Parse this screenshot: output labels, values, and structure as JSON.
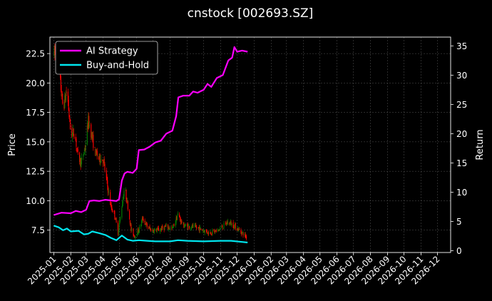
{
  "chart_data": {
    "type": "line",
    "title": "cnstock [002693.SZ]",
    "xlabel": "",
    "ylabel": "Price",
    "y2label": "Return",
    "xlim": [
      "2024-12-25",
      "2026-12-25"
    ],
    "ylim": [
      5.6,
      23.9
    ],
    "y2lim": [
      -0.3,
      36.5
    ],
    "x_ticks": [
      "2025-01",
      "2025-02",
      "2025-03",
      "2025-04",
      "2025-05",
      "2025-06",
      "2025-07",
      "2025-08",
      "2025-09",
      "2025-10",
      "2025-11",
      "2025-12",
      "2026-01",
      "2026-02",
      "2026-03",
      "2026-04",
      "2026-05",
      "2026-06",
      "2026-07",
      "2026-08",
      "2026-09",
      "2026-10",
      "2026-11",
      "2026-12"
    ],
    "y_ticks": [
      "7.5",
      "10.0",
      "12.5",
      "15.0",
      "17.5",
      "20.0",
      "22.5"
    ],
    "y_tick_values": [
      7.5,
      10.0,
      12.5,
      15.0,
      17.5,
      20.0,
      22.5
    ],
    "y2_ticks": [
      "0",
      "5",
      "10",
      "15",
      "20",
      "25",
      "30",
      "35"
    ],
    "y2_tick_values": [
      0,
      5,
      10,
      15,
      20,
      25,
      30,
      35
    ],
    "grid": true,
    "legend_position": "top-left",
    "background": "#000000",
    "candle_up_color": "#008000",
    "candle_down_color": "#ff0000",
    "price_anchors": [
      [
        "2025-01-02",
        22.5
      ],
      [
        "2025-01-10",
        21.3
      ],
      [
        "2025-01-18",
        17.8
      ],
      [
        "2025-01-25",
        19.5
      ],
      [
        "2025-02-01",
        15.6
      ],
      [
        "2025-02-08",
        15.8
      ],
      [
        "2025-02-14",
        13.8
      ],
      [
        "2025-02-20",
        13.2
      ],
      [
        "2025-02-27",
        14.5
      ],
      [
        "2025-03-05",
        16.8
      ],
      [
        "2025-03-10",
        15.8
      ],
      [
        "2025-03-17",
        14.2
      ],
      [
        "2025-03-24",
        13.6
      ],
      [
        "2025-04-01",
        13.5
      ],
      [
        "2025-04-08",
        11.5
      ],
      [
        "2025-04-15",
        9.5
      ],
      [
        "2025-04-22",
        8.8
      ],
      [
        "2025-04-28",
        7.3
      ],
      [
        "2025-05-05",
        9.5
      ],
      [
        "2025-05-10",
        11.2
      ],
      [
        "2025-05-16",
        9.5
      ],
      [
        "2025-05-22",
        7.5
      ],
      [
        "2025-05-28",
        7.0
      ],
      [
        "2025-06-05",
        7.5
      ],
      [
        "2025-06-12",
        8.5
      ],
      [
        "2025-06-20",
        7.8
      ],
      [
        "2025-06-28",
        7.5
      ],
      [
        "2025-07-10",
        7.5
      ],
      [
        "2025-07-25",
        7.8
      ],
      [
        "2025-08-05",
        7.6
      ],
      [
        "2025-08-15",
        8.8
      ],
      [
        "2025-08-25",
        7.9
      ],
      [
        "2025-09-10",
        7.8
      ],
      [
        "2025-09-25",
        7.6
      ],
      [
        "2025-10-10",
        7.3
      ],
      [
        "2025-10-25",
        7.4
      ],
      [
        "2025-11-05",
        7.8
      ],
      [
        "2025-11-15",
        8.2
      ],
      [
        "2025-11-25",
        7.9
      ],
      [
        "2025-12-05",
        7.5
      ],
      [
        "2025-12-12",
        7.2
      ],
      [
        "2025-12-18",
        6.9
      ]
    ],
    "series": [
      {
        "name": "AI Strategy",
        "color": "#ff00ff",
        "axis": "right",
        "points": [
          [
            "2025-01-01",
            6.1
          ],
          [
            "2025-01-15",
            6.5
          ],
          [
            "2025-02-01",
            6.4
          ],
          [
            "2025-02-10",
            6.8
          ],
          [
            "2025-02-20",
            6.6
          ],
          [
            "2025-03-01",
            7.0
          ],
          [
            "2025-03-07",
            8.5
          ],
          [
            "2025-03-15",
            8.6
          ],
          [
            "2025-03-25",
            8.5
          ],
          [
            "2025-04-05",
            8.7
          ],
          [
            "2025-04-15",
            8.6
          ],
          [
            "2025-04-25",
            8.5
          ],
          [
            "2025-04-30",
            8.8
          ],
          [
            "2025-05-05",
            12.0
          ],
          [
            "2025-05-10",
            13.2
          ],
          [
            "2025-05-15",
            13.5
          ],
          [
            "2025-05-25",
            13.3
          ],
          [
            "2025-06-01",
            14.0
          ],
          [
            "2025-06-05",
            17.2
          ],
          [
            "2025-06-15",
            17.3
          ],
          [
            "2025-06-25",
            17.8
          ],
          [
            "2025-07-05",
            18.5
          ],
          [
            "2025-07-15",
            18.8
          ],
          [
            "2025-07-25",
            20.0
          ],
          [
            "2025-08-05",
            20.5
          ],
          [
            "2025-08-12",
            23.0
          ],
          [
            "2025-08-16",
            26.2
          ],
          [
            "2025-08-25",
            26.5
          ],
          [
            "2025-09-05",
            26.5
          ],
          [
            "2025-09-12",
            27.2
          ],
          [
            "2025-09-20",
            27.0
          ],
          [
            "2025-10-01",
            27.5
          ],
          [
            "2025-10-08",
            28.5
          ],
          [
            "2025-10-15",
            28.0
          ],
          [
            "2025-10-25",
            29.5
          ],
          [
            "2025-11-05",
            30.0
          ],
          [
            "2025-11-15",
            32.5
          ],
          [
            "2025-11-22",
            33.0
          ],
          [
            "2025-11-26",
            34.8
          ],
          [
            "2025-12-01",
            34.0
          ],
          [
            "2025-12-10",
            34.2
          ],
          [
            "2025-12-20",
            34.0
          ]
        ]
      },
      {
        "name": "Buy-and-Hold",
        "color": "#00e5ee",
        "axis": "right",
        "points": [
          [
            "2025-01-01",
            4.3
          ],
          [
            "2025-01-10",
            4.0
          ],
          [
            "2025-01-18",
            3.5
          ],
          [
            "2025-01-25",
            3.8
          ],
          [
            "2025-02-01",
            3.3
          ],
          [
            "2025-02-15",
            3.4
          ],
          [
            "2025-02-25",
            2.8
          ],
          [
            "2025-03-05",
            2.9
          ],
          [
            "2025-03-12",
            3.3
          ],
          [
            "2025-03-25",
            3.0
          ],
          [
            "2025-04-05",
            2.7
          ],
          [
            "2025-04-15",
            2.2
          ],
          [
            "2025-04-25",
            1.8
          ],
          [
            "2025-05-05",
            2.6
          ],
          [
            "2025-05-15",
            1.9
          ],
          [
            "2025-05-25",
            1.7
          ],
          [
            "2025-06-05",
            1.8
          ],
          [
            "2025-06-20",
            1.7
          ],
          [
            "2025-07-05",
            1.6
          ],
          [
            "2025-08-01",
            1.6
          ],
          [
            "2025-08-15",
            1.8
          ],
          [
            "2025-09-01",
            1.7
          ],
          [
            "2025-10-01",
            1.6
          ],
          [
            "2025-11-01",
            1.7
          ],
          [
            "2025-11-20",
            1.7
          ],
          [
            "2025-12-10",
            1.5
          ],
          [
            "2025-12-20",
            1.4
          ]
        ]
      }
    ]
  }
}
